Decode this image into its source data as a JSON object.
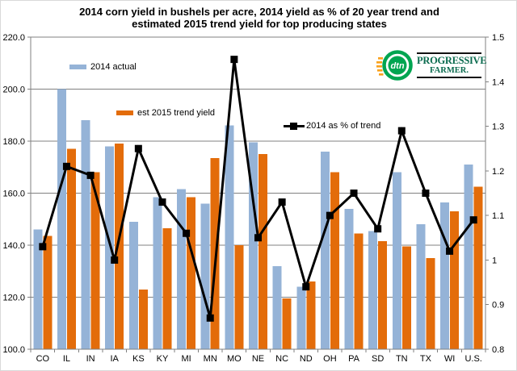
{
  "title": {
    "line1": "2014 corn yield in bushels per acre, 2014 yield as % of 20 year trend and",
    "line2": "estimated 2015 trend yield for top producing states"
  },
  "logo": {
    "dtn": "dtn",
    "brand_top": "PROGRESSIVE",
    "brand_bottom": "FARMER."
  },
  "chart_data": {
    "type": "combo",
    "subtype": "bar+line",
    "categories": [
      "CO",
      "IL",
      "IN",
      "IA",
      "KS",
      "KY",
      "MI",
      "MN",
      "MO",
      "NE",
      "NC",
      "ND",
      "OH",
      "PA",
      "SD",
      "TN",
      "TX",
      "WI",
      "U.S."
    ],
    "series": [
      {
        "name": "2014 actual",
        "type": "bar",
        "axis": "left",
        "color": "#95B3D7",
        "values": [
          146,
          200,
          188,
          178,
          149,
          158.5,
          161.5,
          156,
          186,
          179.5,
          132,
          124,
          176,
          154,
          145.5,
          168,
          148,
          156.5,
          171
        ]
      },
      {
        "name": "est 2015 trend yield",
        "type": "bar",
        "axis": "left",
        "color": "#E36C0A",
        "values": [
          143.5,
          177,
          168,
          179,
          123,
          146.5,
          158.5,
          173.5,
          140,
          175,
          119.5,
          126,
          168,
          144.5,
          141.5,
          139.5,
          135,
          153,
          162.5
        ]
      },
      {
        "name": "2014 as % of trend",
        "type": "line",
        "axis": "right",
        "color": "#000000",
        "marker": "square",
        "values": [
          1.03,
          1.21,
          1.19,
          1.0,
          1.25,
          1.13,
          1.06,
          0.87,
          1.45,
          1.05,
          1.13,
          0.94,
          1.1,
          1.15,
          1.07,
          1.29,
          1.15,
          1.02,
          1.09
        ]
      }
    ],
    "left_axis": {
      "min": 100,
      "max": 220,
      "step": 20,
      "tick_labels": [
        "220.0",
        "200.0",
        "180.0",
        "160.0",
        "140.0",
        "120.0",
        "100.0"
      ]
    },
    "right_axis": {
      "min": 0.8,
      "max": 1.5,
      "step": 0.1,
      "tick_labels": [
        "1.5",
        "1.4",
        "1.3",
        "1.2",
        "1.1",
        "1",
        "0.9",
        "0.8"
      ]
    },
    "grid": true,
    "legend_position": "floating-inside",
    "gridline_color": "#808080",
    "axis_color": "#808080",
    "text_color": "#000000"
  }
}
